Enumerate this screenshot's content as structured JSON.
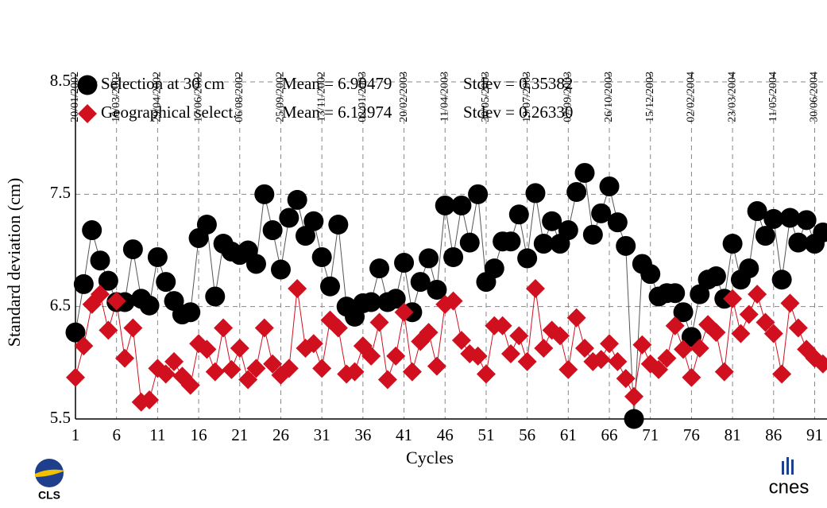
{
  "chart_data": {
    "type": "line",
    "xlabel": "Cycles",
    "ylabel": "Standard deviation (cm)",
    "xlim": [
      1,
      92.5
    ],
    "ylim": [
      5.5,
      8.5
    ],
    "xticks": [
      1,
      6,
      11,
      16,
      21,
      26,
      31,
      36,
      41,
      46,
      51,
      56,
      61,
      66,
      71,
      76,
      81,
      86,
      91
    ],
    "yticks": [
      5.5,
      6.5,
      7.5,
      8.5
    ],
    "x2ticks": [
      {
        "value": 1,
        "label": "20/01/2002"
      },
      {
        "value": 6,
        "label": "10/03/2002"
      },
      {
        "value": 11,
        "label": "29/04/2002"
      },
      {
        "value": 16,
        "label": "17/06/2002"
      },
      {
        "value": 21,
        "label": "06/08/2002"
      },
      {
        "value": 26,
        "label": "25/09/2002"
      },
      {
        "value": 31,
        "label": "13/11/2002"
      },
      {
        "value": 36,
        "label": "02/01/2003"
      },
      {
        "value": 41,
        "label": "20/02/2003"
      },
      {
        "value": 46,
        "label": "11/04/2003"
      },
      {
        "value": 51,
        "label": "30/05/2003"
      },
      {
        "value": 56,
        "label": "19/07/2003"
      },
      {
        "value": 61,
        "label": "07/09/2003"
      },
      {
        "value": 66,
        "label": "26/10/2003"
      },
      {
        "value": 71,
        "label": "15/12/2003"
      },
      {
        "value": 76,
        "label": "02/02/2004"
      },
      {
        "value": 81,
        "label": "23/03/2004"
      },
      {
        "value": 86,
        "label": "11/05/2004"
      },
      {
        "value": 91,
        "label": "30/06/2004"
      }
    ],
    "grid": true,
    "x": [
      1,
      2,
      3,
      4,
      5,
      6,
      7,
      8,
      9,
      10,
      11,
      12,
      13,
      14,
      15,
      16,
      17,
      18,
      19,
      20,
      21,
      22,
      23,
      24,
      25,
      26,
      27,
      28,
      29,
      30,
      31,
      32,
      33,
      34,
      35,
      36,
      37,
      38,
      39,
      40,
      41,
      42,
      43,
      44,
      45,
      46,
      47,
      48,
      49,
      50,
      51,
      52,
      53,
      54,
      55,
      56,
      57,
      58,
      59,
      60,
      61,
      62,
      63,
      64,
      65,
      66,
      67,
      68,
      69,
      70,
      71,
      72,
      73,
      74,
      75,
      76,
      77,
      78,
      79,
      80,
      81,
      82,
      83,
      84,
      85,
      86,
      87,
      88,
      89,
      90,
      91,
      92
    ],
    "series": [
      {
        "name": "Selection at 30 cm",
        "mean_label": "Mean = 6.90479",
        "stdev_label": "Stdev = 0.35382",
        "color": "#000000",
        "line_color": "#555555",
        "marker": "circle",
        "values": [
          6.27,
          6.7,
          7.18,
          6.91,
          6.73,
          6.54,
          6.54,
          7.01,
          6.57,
          6.51,
          6.94,
          6.72,
          6.55,
          6.43,
          6.45,
          7.11,
          7.23,
          6.59,
          7.06,
          6.99,
          6.96,
          7.0,
          6.88,
          7.5,
          7.18,
          6.83,
          7.29,
          7.45,
          7.13,
          7.26,
          6.94,
          6.68,
          7.23,
          6.5,
          6.41,
          6.53,
          6.54,
          6.84,
          6.54,
          6.57,
          6.89,
          6.45,
          6.72,
          6.93,
          6.65,
          7.4,
          6.94,
          7.4,
          7.07,
          7.5,
          6.72,
          6.84,
          7.08,
          7.08,
          7.32,
          6.93,
          7.51,
          7.06,
          7.26,
          7.06,
          7.18,
          7.52,
          7.69,
          7.14,
          7.33,
          7.57,
          7.25,
          7.04,
          5.5,
          6.88,
          6.79,
          6.59,
          6.62,
          6.62,
          6.45,
          6.23,
          6.61,
          6.74,
          6.77,
          6.57,
          7.06,
          6.74,
          6.84,
          7.35,
          7.13,
          7.28,
          6.74,
          7.29,
          7.07,
          7.27,
          7.06,
          7.16
        ]
      },
      {
        "name": "Geographical select.",
        "mean_label": "Mean = 6.12974",
        "stdev_label": "Stdev = 0.26330",
        "color": "#d0101e",
        "line_color": "#d0101e",
        "marker": "diamond",
        "values": [
          5.87,
          6.15,
          6.52,
          6.61,
          6.29,
          6.55,
          6.04,
          6.31,
          5.65,
          5.67,
          5.95,
          5.9,
          6.01,
          5.88,
          5.8,
          6.17,
          6.12,
          5.92,
          6.31,
          5.94,
          6.13,
          5.85,
          5.95,
          6.31,
          5.99,
          5.89,
          5.95,
          6.66,
          6.13,
          6.17,
          5.95,
          6.38,
          6.31,
          5.9,
          5.92,
          6.15,
          6.06,
          6.36,
          5.85,
          6.06,
          6.45,
          5.92,
          6.19,
          6.27,
          5.97,
          6.52,
          6.55,
          6.2,
          6.08,
          6.06,
          5.9,
          6.33,
          6.33,
          6.08,
          6.24,
          6.01,
          6.66,
          6.13,
          6.29,
          6.24,
          5.94,
          6.4,
          6.13,
          6.01,
          6.03,
          6.17,
          6.01,
          5.86,
          5.7,
          6.16,
          5.99,
          5.94,
          6.04,
          6.33,
          6.12,
          5.87,
          6.13,
          6.34,
          6.27,
          5.92,
          6.57,
          6.26,
          6.43,
          6.61,
          6.36,
          6.26,
          5.9,
          6.53,
          6.31,
          6.12,
          6.04,
          5.99
        ]
      }
    ]
  },
  "logos": {
    "left": "CLS",
    "right": "cnes"
  }
}
